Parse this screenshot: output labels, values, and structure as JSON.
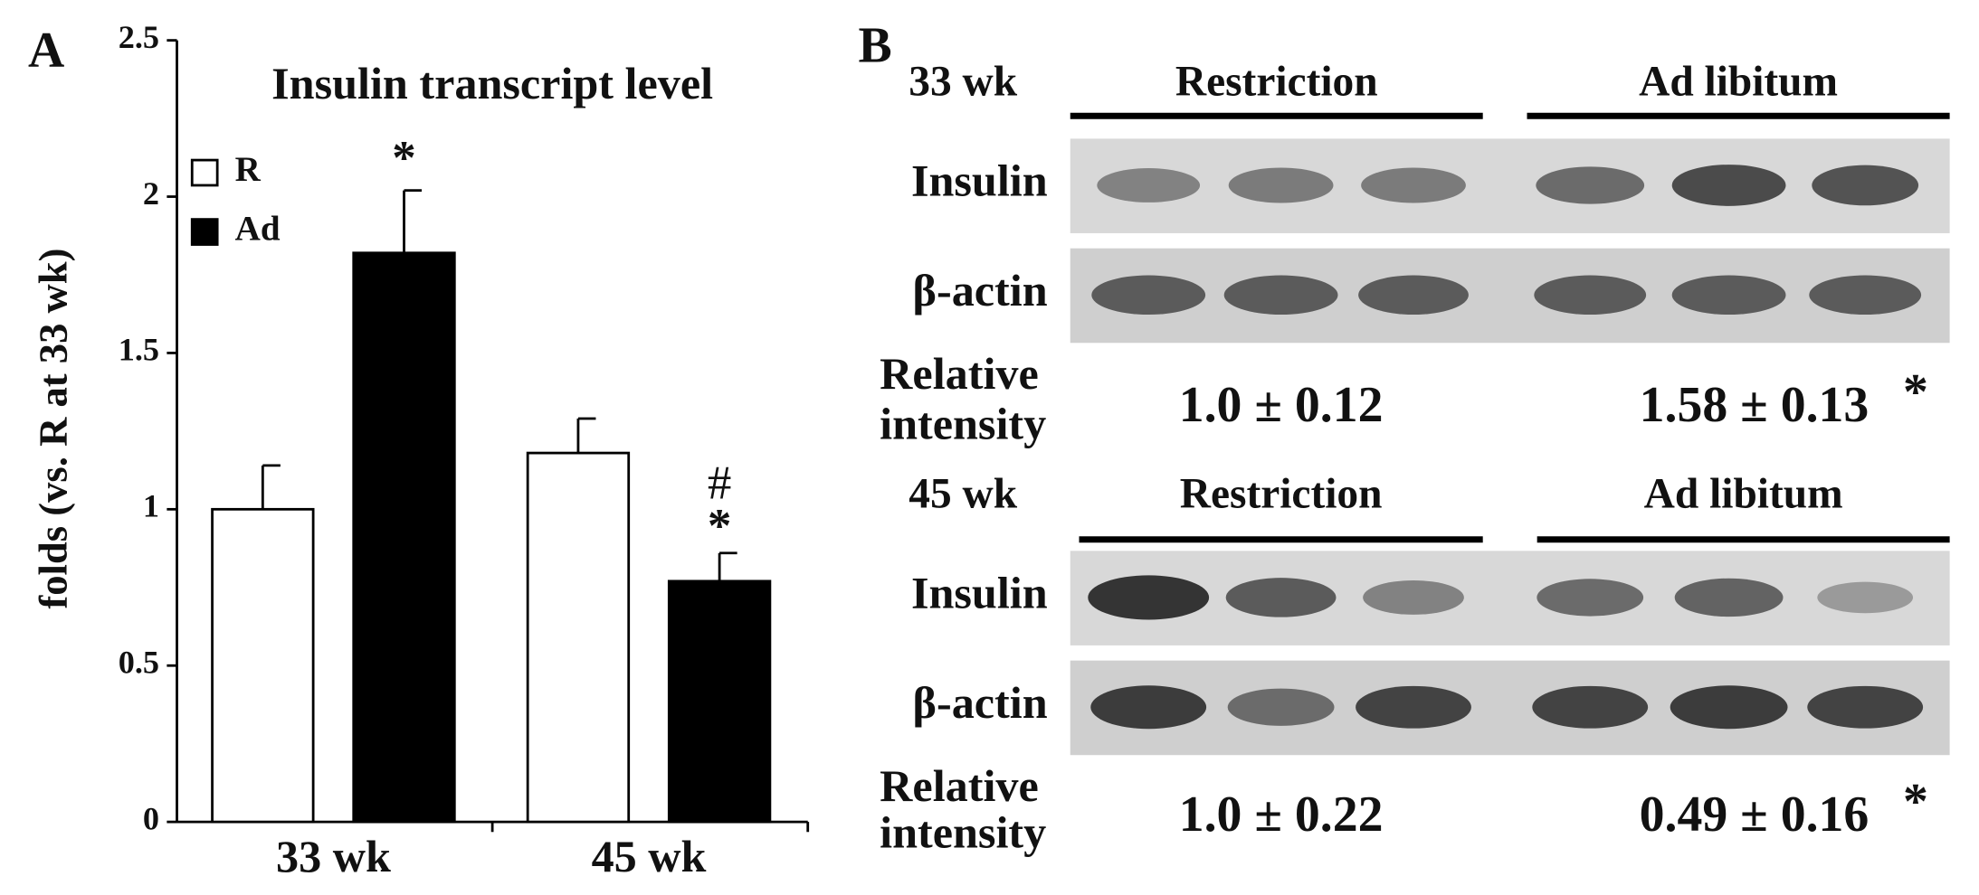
{
  "panel_a": {
    "label": "A",
    "chart_data": {
      "type": "bar",
      "title": "Insulin transcript level",
      "y_label": "folds (vs. R at 33 wk)",
      "categories": [
        "33 wk",
        "45 wk"
      ],
      "series": [
        {
          "name": "R",
          "color": "#ffffff",
          "values": [
            1.0,
            1.18
          ],
          "errors": [
            0.14,
            0.11
          ]
        },
        {
          "name": "Ad",
          "color": "#000000",
          "values": [
            1.82,
            0.77
          ],
          "errors": [
            0.2,
            0.09
          ]
        }
      ],
      "ylim": [
        0,
        2.5
      ],
      "yticks": [
        0,
        0.5,
        1,
        1.5,
        2,
        2.5
      ],
      "annotations": [
        "*",
        "#",
        "*"
      ]
    }
  },
  "panel_b": {
    "label": "B",
    "blots": [
      {
        "week": "33 wk",
        "groups": [
          "Restriction",
          "Ad libitum"
        ],
        "rows": [
          "Insulin",
          "β-actin"
        ],
        "relative": [
          "Relative",
          "intensity"
        ],
        "values": [
          {
            "text": "1.0 ± 0.12"
          },
          {
            "text": "1.58 ± 0.13",
            "mark": "*"
          }
        ]
      },
      {
        "week": "45 wk",
        "groups": [
          "Restriction",
          "Ad libitum"
        ],
        "rows": [
          "Insulin",
          "β-actin"
        ],
        "relative": [
          "Relative",
          "intensity"
        ],
        "values": [
          {
            "text": "1.0 ± 0.22"
          },
          {
            "text": "0.49 ± 0.16",
            "mark": "*"
          }
        ]
      }
    ]
  }
}
